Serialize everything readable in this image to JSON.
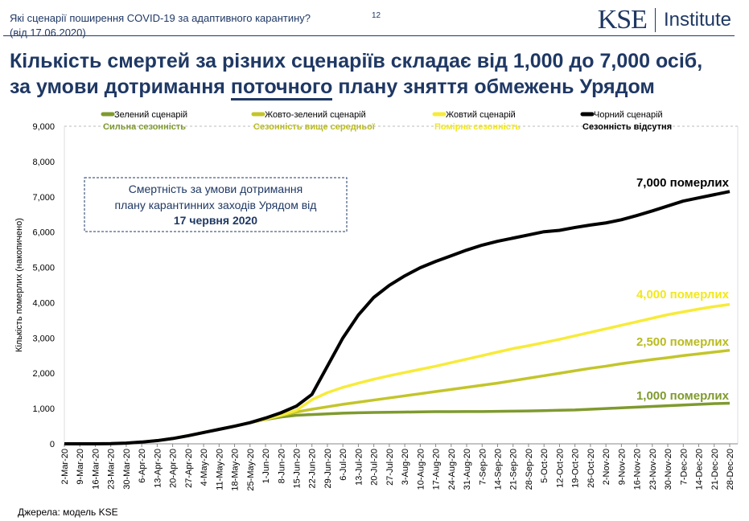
{
  "header": {
    "question": "Які сценарії поширення COVID-19 за адаптивного карантину?",
    "date": "(від 17.06.2020)",
    "page": "12"
  },
  "logo": {
    "kse": "KSE",
    "institute": "Institute"
  },
  "title": {
    "line1": "Кількість смертей за різних сценаріїв складає від 1,000 до 7,000 осіб,",
    "line2_pre": "за умови дотримання ",
    "line2_u": "поточного",
    "line2_post": " плану зняття обмежень Урядом"
  },
  "footer": {
    "source": "Джерела: модель KSE"
  },
  "chart_data": {
    "type": "line",
    "ylabel": "Кількість померлих (накопичено)",
    "ylim": [
      0,
      9000
    ],
    "yticks": [
      "0",
      "1,000",
      "2,000",
      "3,000",
      "4,000",
      "5,000",
      "6,000",
      "7,000",
      "8,000",
      "9,000"
    ],
    "categories": [
      "2-Mar-20",
      "9-Mar-20",
      "16-Mar-20",
      "23-Mar-20",
      "30-Mar-20",
      "6-Apr-20",
      "13-Apr-20",
      "20-Apr-20",
      "27-Apr-20",
      "4-May-20",
      "11-May-20",
      "18-May-20",
      "25-May-20",
      "1-Jun-20",
      "8-Jun-20",
      "15-Jun-20",
      "22-Jun-20",
      "29-Jun-20",
      "6-Jul-20",
      "13-Jul-20",
      "20-Jul-20",
      "27-Jul-20",
      "3-Aug-20",
      "10-Aug-20",
      "17-Aug-20",
      "24-Aug-20",
      "31-Aug-20",
      "7-Sep-20",
      "14-Sep-20",
      "21-Sep-20",
      "28-Sep-20",
      "5-Oct-20",
      "12-Oct-20",
      "19-Oct-20",
      "26-Oct-20",
      "2-Nov-20",
      "9-Nov-20",
      "16-Nov-20",
      "23-Nov-20",
      "30-Nov-20",
      "7-Dec-20",
      "14-Dec-20",
      "21-Dec-20",
      "28-Dec-20"
    ],
    "legend_position": "top",
    "series": [
      {
        "name": "Зелений сценарій",
        "subtitle": "Сильна сезонність",
        "color": "#7f9a2e",
        "end_label": "1,000 померлих",
        "values": [
          0,
          0,
          0,
          5,
          20,
          50,
          90,
          150,
          230,
          320,
          410,
          500,
          600,
          690,
          760,
          810,
          830,
          850,
          870,
          880,
          890,
          895,
          900,
          905,
          910,
          910,
          915,
          915,
          920,
          925,
          930,
          940,
          950,
          960,
          980,
          1000,
          1020,
          1040,
          1060,
          1080,
          1100,
          1120,
          1140,
          1150
        ]
      },
      {
        "name": "Жовто-зелений сценарій",
        "subtitle": "Сезонність вище середньої",
        "color": "#c3c52a",
        "end_label": "2,500 померлих",
        "values": [
          0,
          0,
          0,
          5,
          20,
          50,
          90,
          150,
          230,
          320,
          410,
          500,
          600,
          700,
          800,
          900,
          980,
          1050,
          1120,
          1180,
          1240,
          1300,
          1360,
          1420,
          1480,
          1540,
          1600,
          1660,
          1720,
          1790,
          1860,
          1930,
          2000,
          2070,
          2140,
          2200,
          2270,
          2330,
          2390,
          2440,
          2500,
          2550,
          2600,
          2650
        ]
      },
      {
        "name": "Жовтий сценарій",
        "subtitle": "Помірна сезонність",
        "color": "#f7eb3a",
        "end_label": "4,000 померлих",
        "values": [
          0,
          0,
          0,
          5,
          20,
          50,
          90,
          150,
          230,
          320,
          410,
          500,
          600,
          700,
          810,
          950,
          1250,
          1450,
          1600,
          1720,
          1830,
          1930,
          2020,
          2110,
          2200,
          2300,
          2400,
          2500,
          2600,
          2700,
          2780,
          2870,
          2960,
          3060,
          3160,
          3260,
          3360,
          3460,
          3560,
          3660,
          3740,
          3820,
          3890,
          3950
        ]
      },
      {
        "name": "Чорний сценарій",
        "subtitle": "Сезонність відсутня",
        "color": "#000000",
        "end_label": "7,000 померлих",
        "values": [
          0,
          0,
          0,
          5,
          20,
          50,
          90,
          150,
          230,
          320,
          410,
          500,
          600,
          730,
          880,
          1070,
          1400,
          2200,
          3000,
          3650,
          4150,
          4490,
          4760,
          4990,
          5170,
          5330,
          5490,
          5630,
          5740,
          5830,
          5920,
          6010,
          6050,
          6130,
          6200,
          6260,
          6350,
          6470,
          6600,
          6740,
          6880,
          6970,
          7060,
          7150
        ]
      }
    ],
    "annotation": {
      "line1": "Смертність за умови дотримання",
      "line2": "плану карантинних заходів Урядом від",
      "line3": "17 червня 2020"
    },
    "grid": false
  }
}
